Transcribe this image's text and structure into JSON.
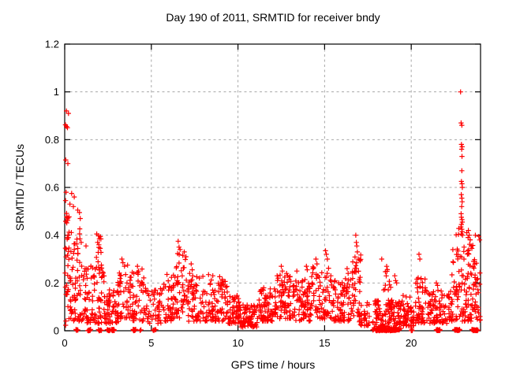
{
  "window": {
    "background": "#ffffff"
  },
  "chart_data": {
    "type": "scatter",
    "title": "Day 190 of 2011, SRMTID for receiver bndy",
    "xlabel": "GPS time / hours",
    "ylabel": "SRMTID / TECUs",
    "xlim": [
      0,
      24
    ],
    "ylim": [
      0,
      1.2
    ],
    "xticks": {
      "values": [
        0,
        5,
        10,
        15,
        20
      ],
      "labels": [
        "0",
        "5",
        "10",
        "15",
        "20"
      ]
    },
    "yticks": {
      "values": [
        0,
        0.2,
        0.4,
        0.6,
        0.8,
        1,
        1.2
      ],
      "labels": [
        "0",
        "0.2",
        "0.4",
        "0.6",
        "0.8",
        "1",
        "1.2"
      ]
    },
    "grid": true,
    "legend": "none",
    "marker": {
      "shape": "plus",
      "color": "#ff0000",
      "size": 7
    },
    "axis_color": "#000000",
    "grid_color": "#a8a8a8",
    "points": [
      [
        0.1,
        0.92
      ],
      [
        0.22,
        0.91
      ],
      [
        0.04,
        0.862
      ],
      [
        0.1,
        0.855
      ],
      [
        0.16,
        0.85
      ],
      [
        0.06,
        0.715
      ],
      [
        0.18,
        0.7
      ],
      [
        0.08,
        0.58
      ],
      [
        0.4,
        0.575
      ],
      [
        0.55,
        0.56
      ],
      [
        0.05,
        0.545
      ],
      [
        0.3,
        0.53
      ],
      [
        0.5,
        0.52
      ],
      [
        0.75,
        0.505
      ],
      [
        0.85,
        0.495
      ],
      [
        0.88,
        0.385
      ],
      [
        0.95,
        0.37
      ],
      [
        1.23,
        0.355
      ],
      [
        1.85,
        0.405
      ],
      [
        1.95,
        0.398
      ],
      [
        2.0,
        0.385
      ],
      [
        1.9,
        0.37
      ],
      [
        2.05,
        0.345
      ],
      [
        3.3,
        0.3
      ],
      [
        3.36,
        0.285
      ],
      [
        3.45,
        0.27
      ],
      [
        4.2,
        0.27
      ],
      [
        4.26,
        0.25
      ],
      [
        6.55,
        0.375
      ],
      [
        6.6,
        0.35
      ],
      [
        6.66,
        0.34
      ],
      [
        6.9,
        0.33
      ],
      [
        7.0,
        0.31
      ],
      [
        7.3,
        0.28
      ],
      [
        7.36,
        0.255
      ],
      [
        8.3,
        0.235
      ],
      [
        8.55,
        0.23
      ],
      [
        12.5,
        0.27
      ],
      [
        12.56,
        0.25
      ],
      [
        13.4,
        0.25
      ],
      [
        13.95,
        0.27
      ],
      [
        14.0,
        0.255
      ],
      [
        14.5,
        0.3
      ],
      [
        14.56,
        0.28
      ],
      [
        15.05,
        0.335
      ],
      [
        15.1,
        0.32
      ],
      [
        15.16,
        0.3
      ],
      [
        16.3,
        0.26
      ],
      [
        16.36,
        0.24
      ],
      [
        16.8,
        0.4
      ],
      [
        16.83,
        0.37
      ],
      [
        16.86,
        0.355
      ],
      [
        16.89,
        0.33
      ],
      [
        16.95,
        0.3
      ],
      [
        18.3,
        0.3
      ],
      [
        19.05,
        0.23
      ],
      [
        19.1,
        0.21
      ],
      [
        19.16,
        0.2
      ],
      [
        20.45,
        0.32
      ],
      [
        20.5,
        0.3
      ],
      [
        21.45,
        0.2
      ],
      [
        21.52,
        0.19
      ],
      [
        22.85,
        1.0
      ],
      [
        22.88,
        0.87
      ],
      [
        22.92,
        0.86
      ],
      [
        22.9,
        0.78
      ],
      [
        22.94,
        0.77
      ],
      [
        22.91,
        0.76
      ],
      [
        22.93,
        0.73
      ],
      [
        22.92,
        0.67
      ],
      [
        22.9,
        0.625
      ],
      [
        22.93,
        0.615
      ],
      [
        22.95,
        0.6
      ],
      [
        22.89,
        0.57
      ],
      [
        22.92,
        0.555
      ],
      [
        22.94,
        0.54
      ],
      [
        22.91,
        0.52
      ],
      [
        22.88,
        0.49
      ],
      [
        22.9,
        0.475
      ],
      [
        22.93,
        0.465
      ],
      [
        22.95,
        0.455
      ],
      [
        22.9,
        0.445
      ],
      [
        22.87,
        0.435
      ],
      [
        22.92,
        0.425
      ],
      [
        22.94,
        0.415
      ],
      [
        22.89,
        0.405
      ],
      [
        22.96,
        0.4
      ],
      [
        23.05,
        0.35
      ],
      [
        23.3,
        0.42
      ],
      [
        23.35,
        0.4
      ],
      [
        23.4,
        0.38
      ],
      [
        23.46,
        0.355
      ],
      [
        23.5,
        0.345
      ],
      [
        23.7,
        0.4
      ],
      [
        23.9,
        0.395
      ],
      [
        23.95,
        0.38
      ]
    ],
    "noise_bands": [
      [
        0.02,
        0.35,
        30,
        0.02,
        0.5,
        1.2
      ],
      [
        0.05,
        0.9,
        25,
        0.28,
        0.48,
        1.0
      ],
      [
        0.3,
        1.2,
        60,
        0.04,
        0.3,
        1.5
      ],
      [
        1.2,
        2.3,
        80,
        0.03,
        0.28,
        1.8
      ],
      [
        1.8,
        2.15,
        10,
        0.26,
        0.4,
        1.0
      ],
      [
        2.3,
        3.1,
        60,
        0.03,
        0.22,
        1.5
      ],
      [
        3.0,
        3.9,
        55,
        0.05,
        0.29,
        1.5
      ],
      [
        3.9,
        4.6,
        45,
        0.04,
        0.26,
        1.5
      ],
      [
        4.6,
        5.6,
        50,
        0.03,
        0.18,
        1.5
      ],
      [
        5.6,
        6.4,
        50,
        0.04,
        0.25,
        1.5
      ],
      [
        6.4,
        7.1,
        45,
        0.05,
        0.33,
        1.3
      ],
      [
        7.1,
        8.0,
        60,
        0.04,
        0.25,
        1.6
      ],
      [
        8.0,
        9.4,
        90,
        0.04,
        0.23,
        1.6
      ],
      [
        9.4,
        10.1,
        60,
        0.03,
        0.15,
        1.5
      ],
      [
        10.1,
        11.2,
        80,
        0.015,
        0.11,
        1.4
      ],
      [
        11.2,
        12.2,
        80,
        0.04,
        0.18,
        1.5
      ],
      [
        12.2,
        13.1,
        70,
        0.05,
        0.24,
        1.4
      ],
      [
        13.1,
        14.2,
        80,
        0.04,
        0.22,
        1.5
      ],
      [
        14.2,
        15.5,
        80,
        0.05,
        0.27,
        1.4
      ],
      [
        15.5,
        16.6,
        80,
        0.04,
        0.22,
        1.5
      ],
      [
        16.6,
        17.1,
        40,
        0.06,
        0.32,
        1.2
      ],
      [
        17.0,
        17.6,
        30,
        0.02,
        0.12,
        1.5
      ],
      [
        17.6,
        18.0,
        8,
        0.0,
        0.04,
        1.0
      ],
      [
        17.9,
        19.4,
        130,
        0.0,
        0.13,
        1.5
      ],
      [
        18.4,
        18.85,
        12,
        0.14,
        0.27,
        1.0
      ],
      [
        19.4,
        20.2,
        60,
        0.02,
        0.15,
        1.5
      ],
      [
        20.2,
        21.0,
        60,
        0.03,
        0.24,
        1.5
      ],
      [
        21.0,
        22.3,
        90,
        0.03,
        0.17,
        1.5
      ],
      [
        22.3,
        23.1,
        60,
        0.04,
        0.35,
        1.6
      ],
      [
        22.55,
        22.75,
        8,
        0.28,
        0.45,
        1.0
      ],
      [
        23.1,
        24.0,
        70,
        0.04,
        0.3,
        1.5
      ],
      [
        23.2,
        23.6,
        14,
        0.26,
        0.42,
        1.0
      ]
    ],
    "zero_runs": [
      [
        0.65,
        0.76,
        5
      ],
      [
        1.33,
        1.5,
        10
      ],
      [
        1.95,
        2.02,
        3
      ],
      [
        2.06,
        2.12,
        3
      ],
      [
        2.45,
        2.62,
        12
      ],
      [
        2.7,
        2.86,
        12
      ],
      [
        3.95,
        4.1,
        10
      ],
      [
        4.35,
        4.4,
        2
      ],
      [
        5.1,
        5.15,
        2
      ],
      [
        5.2,
        5.26,
        2
      ],
      [
        17.95,
        18.55,
        30
      ],
      [
        18.6,
        19.25,
        30
      ],
      [
        20.0,
        20.06,
        3
      ],
      [
        21.45,
        21.66,
        14
      ],
      [
        22.5,
        22.8,
        18
      ],
      [
        23.5,
        23.85,
        20
      ]
    ],
    "seed": 190
  }
}
